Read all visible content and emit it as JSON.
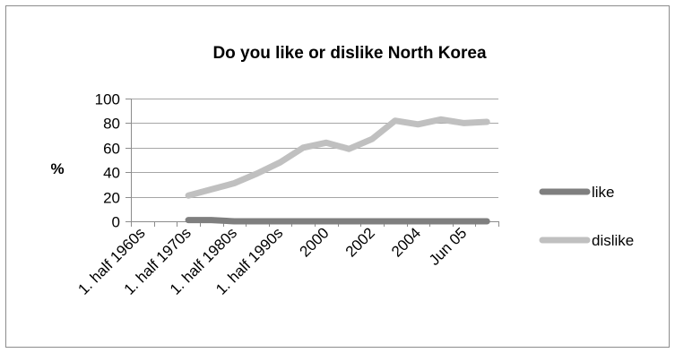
{
  "chart_data": {
    "type": "line",
    "title": "Do you like or dislike North Korea",
    "xlabel": "",
    "ylabel": "%",
    "ylim": [
      0,
      100
    ],
    "yticks": [
      0,
      20,
      40,
      60,
      80,
      100
    ],
    "categories": [
      "1. half 1960s",
      "",
      "1. half 1970s",
      "",
      "1. half 1980s",
      "",
      "1. half 1990s",
      "",
      "2000",
      "",
      "2002",
      "",
      "2004",
      "",
      "Jun 05",
      ""
    ],
    "grid": true,
    "legend_position": "right",
    "series": [
      {
        "name": "like",
        "color": "#7f7f7f",
        "values": [
          null,
          null,
          1,
          1,
          0,
          0,
          0,
          0,
          0,
          0,
          0,
          0,
          0,
          0,
          0,
          0
        ]
      },
      {
        "name": "dislike",
        "color": "#c0c0c0",
        "values": [
          null,
          null,
          21,
          26,
          31,
          39,
          48,
          60,
          64,
          59,
          67,
          82,
          79,
          83,
          80,
          81
        ]
      }
    ]
  }
}
